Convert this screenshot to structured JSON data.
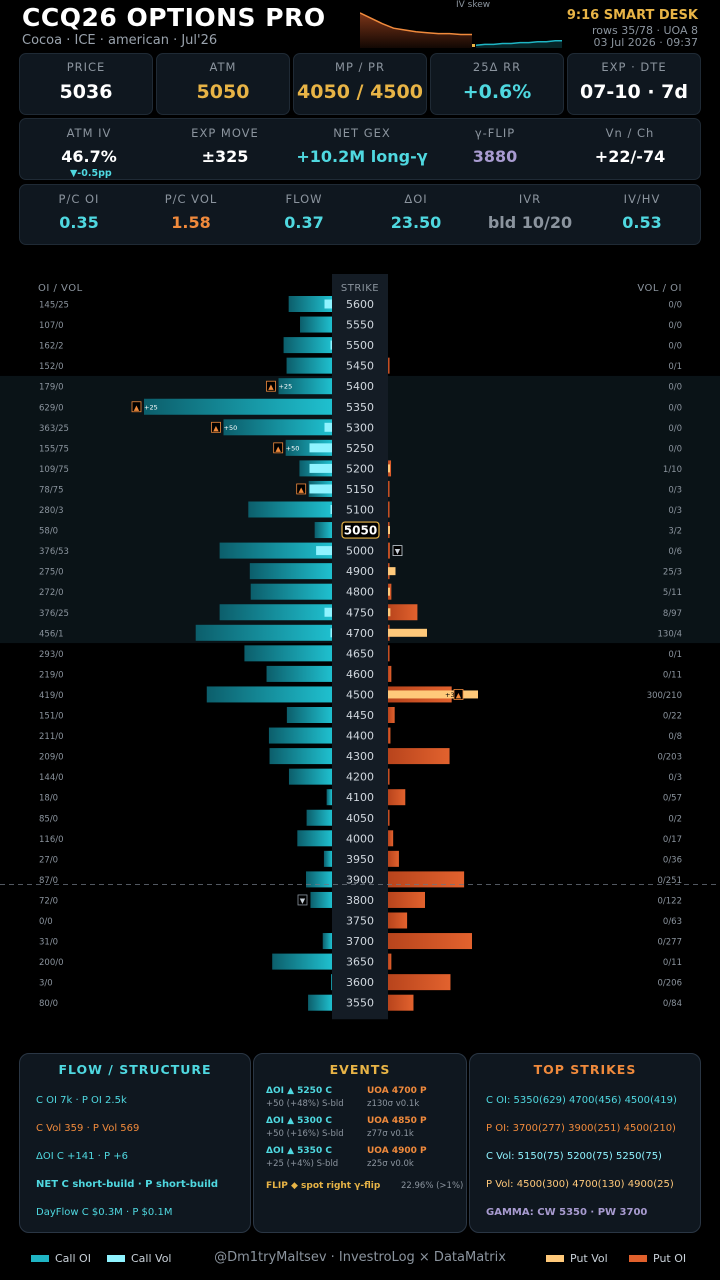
{
  "header": {
    "title": "CCQ26 OPTIONS PRO",
    "subtitle": "Cocoa · ICE · american · Jul'26",
    "skew_label": "IV skew",
    "desk": "9:16 SMART DESK",
    "rows": "rows 35/78 · UOA 8",
    "date": "03 Jul 2026 · 09:37"
  },
  "kpis": [
    {
      "label": "PRICE",
      "value": "5036",
      "color": "#ffffff"
    },
    {
      "label": "ATM",
      "value": "5050",
      "color": "#e8b446"
    },
    {
      "label": "MP / PR",
      "value": "4050 / 4500",
      "color": "#e8b446"
    },
    {
      "label": "25Δ RR",
      "value": "+0.6%",
      "color": "#4fd8e0"
    },
    {
      "label": "EXP · DTE",
      "value": "07-10 · 7d",
      "color": "#ffffff"
    }
  ],
  "row2": [
    {
      "label": "ATM IV",
      "value": "46.7%",
      "color": "#ffffff"
    },
    {
      "label": "EXP MOVE",
      "value": "±325",
      "color": "#ffffff"
    },
    {
      "label": "NET GEX",
      "value": "+10.2M long-γ",
      "color": "#4fd8e0"
    },
    {
      "label": "γ-FLIP",
      "value": "3880",
      "color": "#a89bd0"
    },
    {
      "label": "Vn / Ch",
      "value": "+22/-74",
      "color": "#ffffff"
    }
  ],
  "atm_iv_change": "▼-0.5pp",
  "row3": [
    {
      "label": "P/C OI",
      "value": "0.35",
      "color": "#4fd8e0"
    },
    {
      "label": "P/C VOL",
      "value": "1.58",
      "color": "#f08a3c"
    },
    {
      "label": "FLOW",
      "value": "0.37",
      "color": "#4fd8e0"
    },
    {
      "label": "ΔOI",
      "value": "23.50",
      "color": "#4fd8e0"
    },
    {
      "label": "IVR",
      "value": "bld 10/20",
      "color": "#8b949e"
    },
    {
      "label": "IV/HV",
      "value": "0.53",
      "color": "#4fd8e0"
    }
  ],
  "ladder": {
    "left_header": "OI / VOL",
    "mid_header": "STRIKE",
    "right_header": "VOL / OI",
    "atm_strike": 5050,
    "rows": [
      {
        "strike": 5600,
        "coi": 145,
        "cvol": 25,
        "pvol": 0,
        "poi": 0
      },
      {
        "strike": 5550,
        "coi": 107,
        "cvol": 0,
        "pvol": 0,
        "poi": 0
      },
      {
        "strike": 5500,
        "coi": 162,
        "cvol": 2,
        "pvol": 0,
        "poi": 0
      },
      {
        "strike": 5450,
        "coi": 152,
        "cvol": 0,
        "pvol": 0,
        "poi": 1
      },
      {
        "strike": 5400,
        "coi": 179,
        "cvol": 0,
        "pvol": 0,
        "poi": 0,
        "c_mark": "▲",
        "c_tag": "+25"
      },
      {
        "strike": 5350,
        "coi": 629,
        "cvol": 0,
        "pvol": 0,
        "poi": 0,
        "c_mark": "▲",
        "c_tag": "+25"
      },
      {
        "strike": 5300,
        "coi": 363,
        "cvol": 25,
        "pvol": 0,
        "poi": 0,
        "c_mark": "▲",
        "c_tag": "+50"
      },
      {
        "strike": 5250,
        "coi": 155,
        "cvol": 75,
        "pvol": 0,
        "poi": 0,
        "c_mark": "▲",
        "c_tag": "+50"
      },
      {
        "strike": 5200,
        "coi": 109,
        "cvol": 75,
        "pvol": 1,
        "poi": 10
      },
      {
        "strike": 5150,
        "coi": 78,
        "cvol": 75,
        "pvol": 0,
        "poi": 3,
        "c_mark": "▲"
      },
      {
        "strike": 5100,
        "coi": 280,
        "cvol": 3,
        "pvol": 0,
        "poi": 3
      },
      {
        "strike": 5050,
        "coi": 58,
        "cvol": 0,
        "pvol": 3,
        "poi": 2
      },
      {
        "strike": 5000,
        "coi": 376,
        "cvol": 53,
        "pvol": 0,
        "poi": 6,
        "p_mark": "▼"
      },
      {
        "strike": 4900,
        "coi": 275,
        "cvol": 0,
        "pvol": 25,
        "poi": 3
      },
      {
        "strike": 4800,
        "coi": 272,
        "cvol": 0,
        "pvol": 5,
        "poi": 11
      },
      {
        "strike": 4750,
        "coi": 376,
        "cvol": 25,
        "pvol": 8,
        "poi": 97
      },
      {
        "strike": 4700,
        "coi": 456,
        "cvol": 1,
        "pvol": 130,
        "poi": 4
      },
      {
        "strike": 4650,
        "coi": 293,
        "cvol": 0,
        "pvol": 0,
        "poi": 1
      },
      {
        "strike": 4600,
        "coi": 219,
        "cvol": 0,
        "pvol": 0,
        "poi": 11
      },
      {
        "strike": 4500,
        "coi": 419,
        "cvol": 0,
        "pvol": 300,
        "poi": 210,
        "p_mark": "▲",
        "p_tag": "+3"
      },
      {
        "strike": 4450,
        "coi": 151,
        "cvol": 0,
        "pvol": 0,
        "poi": 22
      },
      {
        "strike": 4400,
        "coi": 211,
        "cvol": 0,
        "pvol": 0,
        "poi": 8
      },
      {
        "strike": 4300,
        "coi": 209,
        "cvol": 0,
        "pvol": 0,
        "poi": 203
      },
      {
        "strike": 4200,
        "coi": 144,
        "cvol": 0,
        "pvol": 0,
        "poi": 3
      },
      {
        "strike": 4100,
        "coi": 18,
        "cvol": 0,
        "pvol": 0,
        "poi": 57
      },
      {
        "strike": 4050,
        "coi": 85,
        "cvol": 0,
        "pvol": 0,
        "poi": 2
      },
      {
        "strike": 4000,
        "coi": 116,
        "cvol": 0,
        "pvol": 0,
        "poi": 17
      },
      {
        "strike": 3950,
        "coi": 27,
        "cvol": 0,
        "pvol": 0,
        "poi": 36
      },
      {
        "strike": 3900,
        "coi": 87,
        "cvol": 0,
        "pvol": 0,
        "poi": 251
      },
      {
        "strike": 3800,
        "coi": 72,
        "cvol": 0,
        "pvol": 0,
        "poi": 122,
        "c_mark": "▼"
      },
      {
        "strike": 3750,
        "coi": 0,
        "cvol": 0,
        "pvol": 0,
        "poi": 63
      },
      {
        "strike": 3700,
        "coi": 31,
        "cvol": 0,
        "pvol": 0,
        "poi": 277
      },
      {
        "strike": 3650,
        "coi": 200,
        "cvol": 0,
        "pvol": 0,
        "poi": 11
      },
      {
        "strike": 3600,
        "coi": 3,
        "cvol": 0,
        "pvol": 0,
        "poi": 206
      },
      {
        "strike": 3550,
        "coi": 80,
        "cvol": 0,
        "pvol": 0,
        "poi": 84
      }
    ]
  },
  "skew": {
    "left": [
      39,
      33,
      27,
      22,
      20,
      18,
      17,
      16,
      16,
      15,
      15
    ],
    "right": [
      3,
      4,
      4,
      5,
      5,
      6,
      6,
      7,
      7,
      8,
      8
    ]
  },
  "flow": {
    "title": "FLOW / STRUCTURE",
    "l1": "C OI 7k  ·  P OI 2.5k",
    "l2": "C Vol 359  ·  P Vol 569",
    "l3": "ΔOI C +141  ·  P +6",
    "l4": "NET  C short-build  ·  P short-build",
    "l5": "DayFlow  C $0.3M   ·   P $0.1M"
  },
  "events": {
    "title": "EVENTS",
    "e1a": "ΔOI ▲ 5250 C",
    "e1a2": "+50 (+48%)  S-bld",
    "e1b": "UOA 4700 P",
    "e1b2": "z130σ v0.1k",
    "e2a": "ΔOI ▲ 5300 C",
    "e2a2": "+50 (+16%)  S-bld",
    "e2b": "UOA 4850 P",
    "e2b2": "z77σ v0.1k",
    "e3a": "ΔOI ▲ 5350 C",
    "e3a2": "+25 (+4%)  S-bld",
    "e3b": "UOA 4900 P",
    "e3b2": "z25σ v0.0k",
    "flip": "FLIP ◆ spot right γ-flip",
    "flip_pct": "22.96% (>1%)"
  },
  "top": {
    "title": "TOP STRIKES",
    "l1": "C OI: 5350(629)  4700(456)  4500(419)",
    "l2": "P OI: 3700(277)  3900(251)  4500(210)",
    "l3": "C Vol: 5150(75)  5200(75)  5250(75)",
    "l4": "P Vol: 4500(300)  4700(130)  4900(25)",
    "l5": "GAMMA: CW 5350 · PW 3700"
  },
  "legend": {
    "call_oi": "Call OI",
    "call_vol": "Call Vol",
    "put_vol": "Put Vol",
    "put_oi": "Put OI"
  },
  "credit": "@Dm1tryMaltsev  ·  InvestroLog × DataMatrix",
  "colors": {
    "call_oi": "#1fb5c4",
    "call_vol": "#8ff3ff",
    "put_vol": "#ffc97a",
    "put_oi": "#e0602c",
    "gold": "#e8b446"
  }
}
